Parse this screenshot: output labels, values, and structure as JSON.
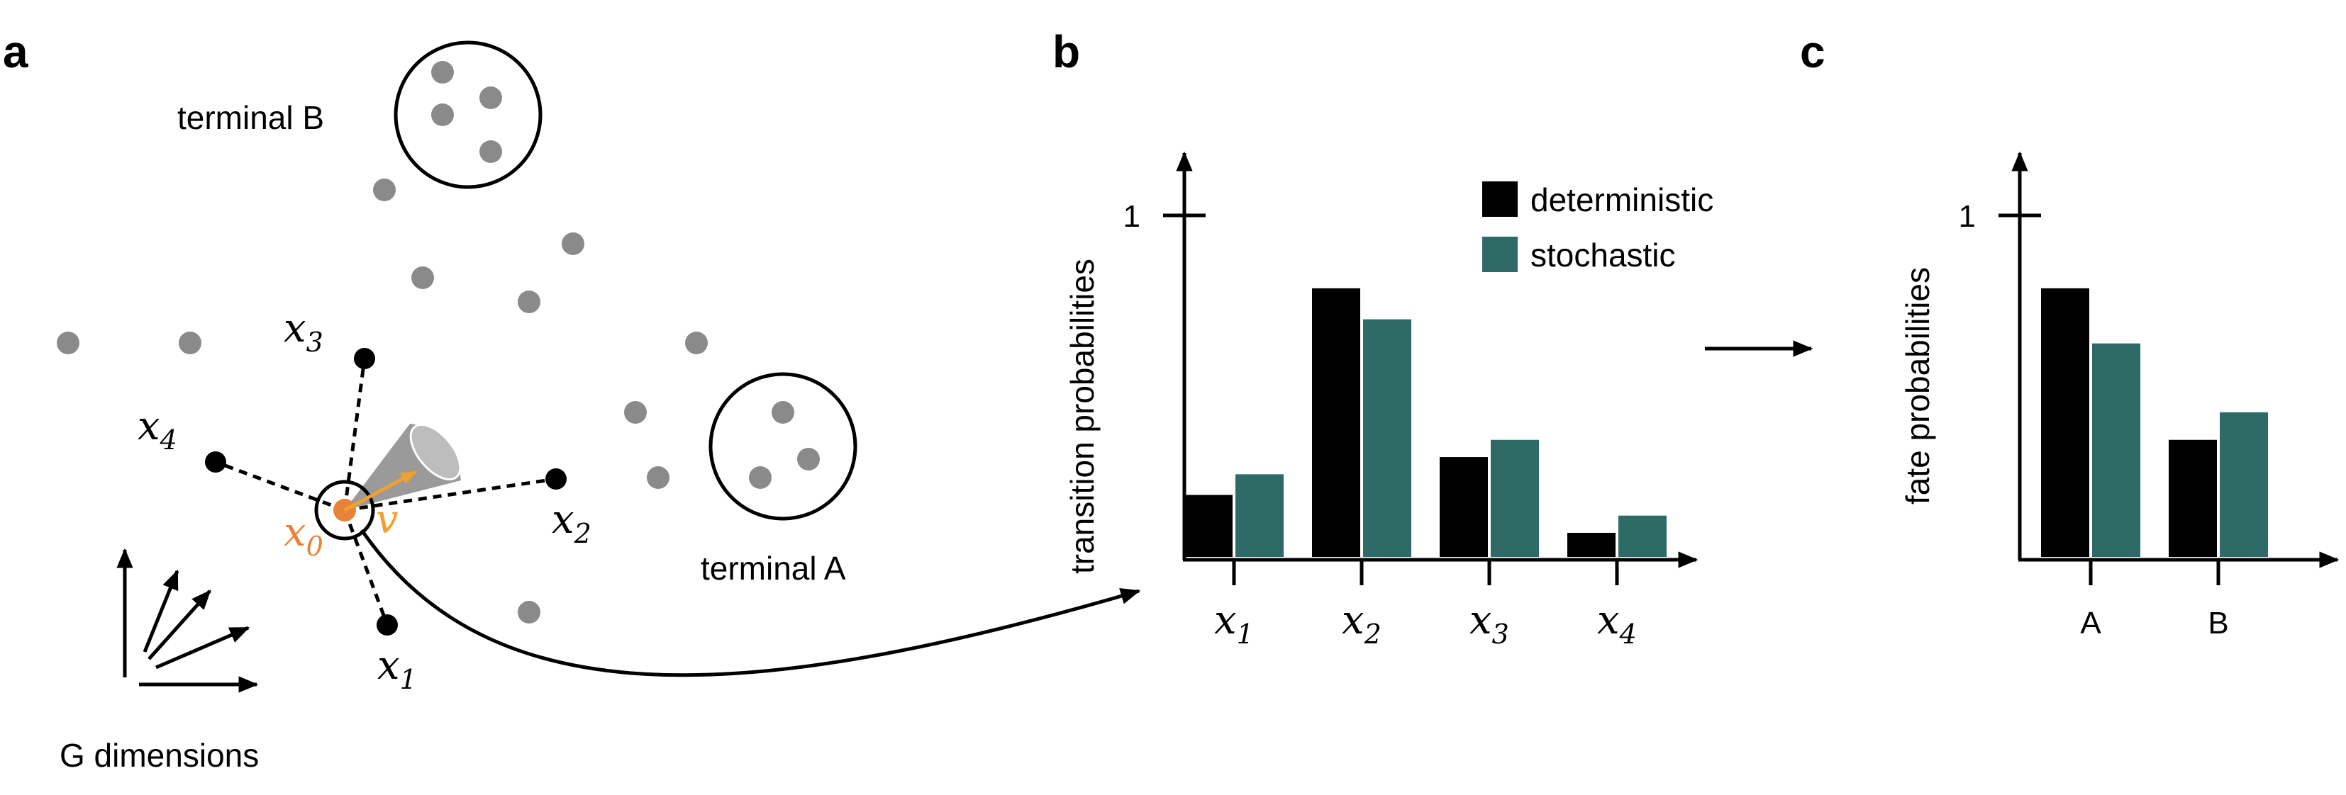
{
  "panels": {
    "a": {
      "letter": "a",
      "terminal_b": "terminal B",
      "terminal_a": "terminal A",
      "g_dimensions": "G dimensions",
      "neighbors": [
        {
          "name": "x",
          "sub": "1"
        },
        {
          "name": "x",
          "sub": "2"
        },
        {
          "name": "x",
          "sub": "3"
        },
        {
          "name": "x",
          "sub": "4"
        }
      ],
      "origin": {
        "name": "x",
        "sub": "0"
      },
      "velocity": "v"
    },
    "b": {
      "letter": "b"
    },
    "c": {
      "letter": "c"
    }
  },
  "colors": {
    "deterministic": "#000000",
    "stochastic": "#2e6b66",
    "cell": "#8a8a8a",
    "origin": "#e8823a",
    "velocity": "#f0a030",
    "cone": "#9a9a9a"
  },
  "chart_data": [
    {
      "type": "bar",
      "panel": "b",
      "ylabel": "transition probabilities",
      "categories": [
        "x1",
        "x2",
        "x3",
        "x4"
      ],
      "category_labels": [
        {
          "name": "x",
          "sub": "1"
        },
        {
          "name": "x",
          "sub": "2"
        },
        {
          "name": "x",
          "sub": "3"
        },
        {
          "name": "x",
          "sub": "4"
        }
      ],
      "ylim": [
        0,
        1
      ],
      "yticks": [
        1
      ],
      "ytick_labels": [
        "1"
      ],
      "series": [
        {
          "name": "deterministic",
          "values": [
            0.18,
            0.78,
            0.29,
            0.07
          ]
        },
        {
          "name": "stochastic",
          "values": [
            0.24,
            0.69,
            0.34,
            0.12
          ]
        }
      ],
      "legend": "top-right"
    },
    {
      "type": "bar",
      "panel": "c",
      "ylabel": "fate probabilities",
      "categories": [
        "A",
        "B"
      ],
      "ylim": [
        0,
        1
      ],
      "yticks": [
        1
      ],
      "ytick_labels": [
        "1"
      ],
      "series": [
        {
          "name": "deterministic",
          "values": [
            0.78,
            0.34
          ]
        },
        {
          "name": "stochastic",
          "values": [
            0.62,
            0.42
          ]
        }
      ]
    }
  ]
}
